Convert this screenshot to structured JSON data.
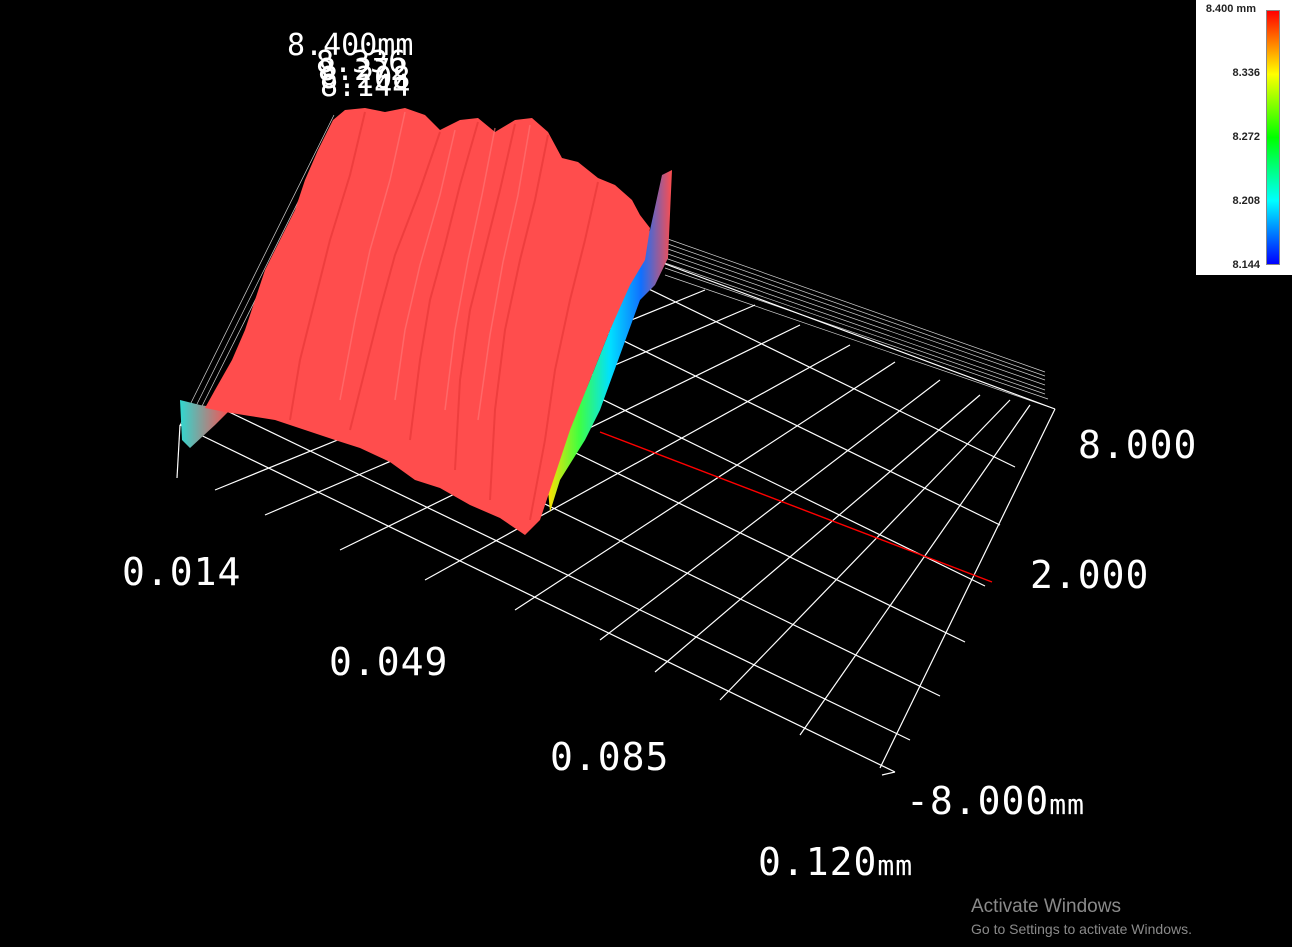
{
  "z_axis": {
    "top_label": "8.400mm",
    "stacked_ticks": [
      "8.336",
      "8.272",
      "8.208",
      "8.144"
    ]
  },
  "x_axis": {
    "ticks": [
      "0.014",
      "0.049",
      "0.085",
      "0.120"
    ],
    "unit": "mm"
  },
  "y_axis": {
    "ticks": [
      "8.000",
      "2.000",
      "-8.000"
    ],
    "unit": "mm"
  },
  "legend": {
    "max_label": "8.400 mm",
    "labels": [
      "8.336",
      "8.272",
      "8.208",
      "8.144"
    ],
    "colors": [
      "#ff0000",
      "#ffff00",
      "#00ff00",
      "#00ffff",
      "#0000ff"
    ]
  },
  "surface": {
    "main_color": "#ff4d4d",
    "grid_color": "#ffffff",
    "reference_line_color": "#ff0000"
  },
  "watermark": {
    "title": "Activate Windows",
    "subtitle": "Go to Settings to activate Windows."
  }
}
